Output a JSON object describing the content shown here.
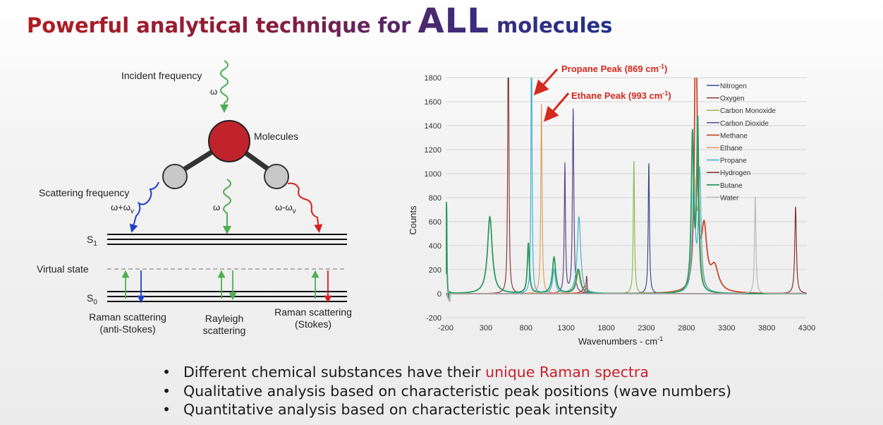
{
  "title": {
    "prefix": "Powerful analytical technique for",
    "emphasis": "ALL",
    "suffix": "molecules"
  },
  "diagram": {
    "incident_label": "Incident frequency",
    "incident_symbol": "ω",
    "molecules_label": "Molecules",
    "scattering_label": "Scattering frequency",
    "anti_stokes_symbol": "ω+ω",
    "rayleigh_symbol": "ω",
    "stokes_symbol": "ω-ω",
    "vib_subscript": "v",
    "s1_label": "S",
    "s1_sub": "1",
    "s0_label": "S",
    "s0_sub": "0",
    "virtual_label": "Virtual state",
    "anti_stokes_caption": [
      "Raman scattering",
      "(anti-Stokes)"
    ],
    "rayleigh_caption": [
      "Rayleigh",
      "scattering"
    ],
    "stokes_caption": [
      "Raman scattering",
      "(Stokes)"
    ],
    "colors": {
      "molecule": "#c0232b",
      "atom": "#c8c8c8",
      "incident": "#4caf50",
      "anti_stokes": "#1f3fc8",
      "stokes": "#d42020",
      "virtual": "#9a9a9a"
    }
  },
  "chart_data": {
    "type": "line",
    "xlabel": "Wavenumbers - cm",
    "xlabel_sup": "-1",
    "ylabel": "Counts",
    "xlim": [
      -200,
      4300
    ],
    "ylim": [
      -200,
      1800
    ],
    "xticks": [
      -200,
      300,
      800,
      1300,
      1800,
      2300,
      2800,
      3300,
      3800,
      4300
    ],
    "yticks": [
      -200,
      0,
      200,
      400,
      600,
      800,
      1000,
      1200,
      1400,
      1600,
      1800
    ],
    "grid": "horizontal",
    "legend_position": "top-right",
    "annotations": [
      {
        "text": "Propane Peak (869 cm",
        "sup": "-1",
        "text_end": ")",
        "x": 869,
        "y": 1800
      },
      {
        "text": "Ethane Peak (993 cm",
        "sup": "-1",
        "text_end": ")",
        "x": 993,
        "y": 1450
      }
    ],
    "series": [
      {
        "name": "Nitrogen",
        "color": "#3b4c8c",
        "width": 1.2,
        "base": 0,
        "peaks": [
          [
            2331,
            1100,
            9
          ]
        ]
      },
      {
        "name": "Oxygen",
        "color": "#8c3a3a",
        "width": 1.2,
        "base": 0,
        "peaks": [
          [
            580,
            2500,
            8
          ],
          [
            1556,
            150,
            8
          ]
        ]
      },
      {
        "name": "Carbon Monoxide",
        "color": "#98b852",
        "width": 1.2,
        "base": 0,
        "peaks": [
          [
            2145,
            1120,
            9
          ]
        ]
      },
      {
        "name": "Carbon Dioxide",
        "color": "#5a4a8a",
        "width": 1.2,
        "base": 0,
        "peaks": [
          [
            1285,
            1080,
            9
          ],
          [
            1388,
            1550,
            10
          ]
        ]
      },
      {
        "name": "Methane",
        "color": "#c84830",
        "width": 1.8,
        "base": 0,
        "peaks": [
          [
            2917,
            2500,
            18
          ],
          [
            3020,
            500,
            40
          ],
          [
            3150,
            200,
            60
          ],
          [
            1534,
            60,
            30
          ]
        ]
      },
      {
        "name": "Ethane",
        "color": "#e0a060",
        "width": 1.2,
        "base": 0,
        "peaks": [
          [
            993,
            1600,
            9
          ],
          [
            2900,
            900,
            30
          ],
          [
            2954,
            600,
            20
          ],
          [
            1460,
            200,
            30
          ]
        ]
      },
      {
        "name": "Propane",
        "color": "#40b0d0",
        "width": 1.2,
        "base": 0,
        "peaks": [
          [
            869,
            2500,
            7
          ],
          [
            1460,
            640,
            25
          ],
          [
            2890,
            900,
            20
          ],
          [
            2965,
            1000,
            20
          ],
          [
            1150,
            200,
            20
          ]
        ]
      },
      {
        "name": "Hydrogen",
        "color": "#8a3030",
        "width": 1.2,
        "base": 0,
        "peaks": [
          [
            4160,
            730,
            12
          ]
        ]
      },
      {
        "name": "Butane",
        "color": "#2e9a60",
        "width": 1.8,
        "base": 0,
        "peaks": [
          [
            -190,
            800,
            5
          ],
          [
            350,
            640,
            35
          ],
          [
            830,
            420,
            15
          ],
          [
            1150,
            300,
            25
          ],
          [
            2875,
            1300,
            18
          ],
          [
            2940,
            1400,
            15
          ],
          [
            1450,
            200,
            30
          ]
        ]
      },
      {
        "name": "Water",
        "color": "#b8b8c0",
        "width": 1.2,
        "base": 0,
        "peaks": [
          [
            3657,
            820,
            10
          ]
        ]
      }
    ]
  },
  "bullets": [
    {
      "pre": "Different chemical substances have their ",
      "highlight": "unique Raman spectra",
      "post": ""
    },
    {
      "pre": "Qualitative analysis based on characteristic peak positions (wave numbers)",
      "highlight": "",
      "post": ""
    },
    {
      "pre": "Quantitative analysis based on characteristic peak intensity",
      "highlight": "",
      "post": ""
    }
  ]
}
